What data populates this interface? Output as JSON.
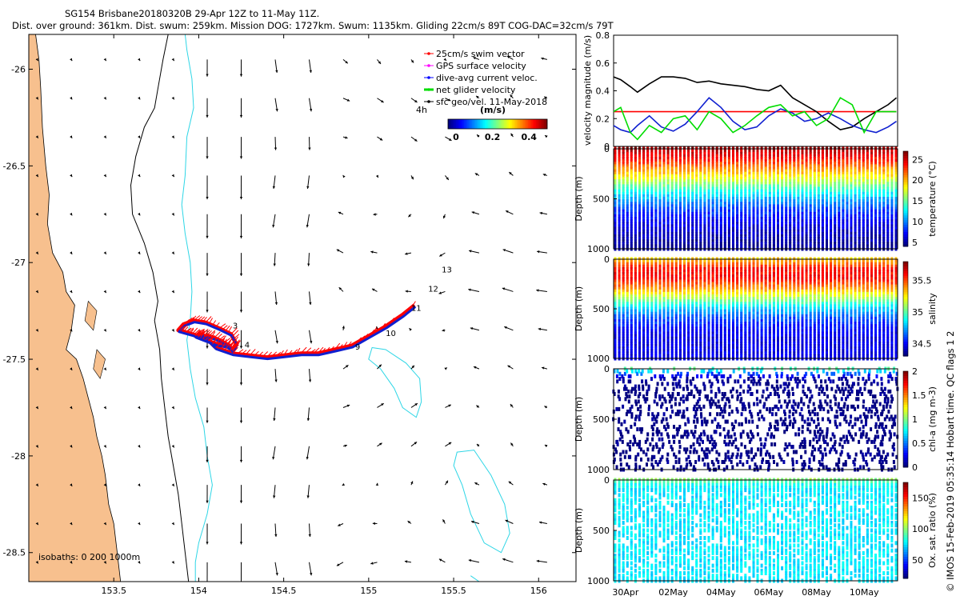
{
  "header": {
    "line1": "SG154 Brisbane20180320B 29-Apr 12Z to 11-May 11Z.",
    "line2": "Dist. over ground: 361km. Dist. swum: 259km. Mission DOG: 1727km. Swum: 1135km. Gliding 22cm/s 89T COG-DAC=32cm/s 79T"
  },
  "side_note": "© IMOS 15-Feb-2019 05:35:14 Hobart time. QC flags 1  2",
  "colors": {
    "land": "#f7c08e",
    "isobath200": "#000000",
    "isobath1000": "#2ed6e6",
    "track_red": "#ff0000",
    "track_blue": "#1020d0"
  },
  "chart_data": [
    {
      "type": "scatter",
      "name": "map",
      "xlim": [
        153.0,
        156.22
      ],
      "ylim": [
        -28.65,
        -25.82
      ],
      "x_ticks": [
        153.5,
        154,
        154.5,
        155,
        155.5,
        156
      ],
      "x_tick_labels": [
        "153.5",
        "154",
        "154.5",
        "155",
        "155.5",
        "156"
      ],
      "y_ticks": [
        -26,
        -26.5,
        -27,
        -27.5,
        -28,
        -28.5
      ],
      "y_tick_labels": [
        "-26",
        "-26.5",
        "-27",
        "-27.5",
        "-28",
        "-28.5"
      ],
      "legend": {
        "placement": "top-right",
        "entries": [
          "25cm/s swim vector",
          "GPS surface velocity",
          "dive-avg current veloc.",
          "net glider velocity",
          "sfc geo/vel. 11-May-2018"
        ],
        "entry_colors": [
          "#ff0000",
          "#ff00ff",
          "#0000ff",
          "#00dd00",
          "#000000"
        ],
        "interval_label": "4h",
        "colorbar_title": "(m/s)",
        "colorbar_ticks": [
          0,
          0.2,
          0.4
        ],
        "colorbar_tick_labels": [
          "0",
          "0.2",
          "0.4"
        ]
      },
      "isobath_label": "isobaths: 0   200   1000m",
      "isobath_levels": [
        0,
        200,
        1000
      ],
      "day_labels": [
        {
          "label": "3",
          "lon": 154.2,
          "lat": -27.34
        },
        {
          "label": "4",
          "lon": 154.27,
          "lat": -27.44
        },
        {
          "label": "9",
          "lon": 154.92,
          "lat": -27.45
        },
        {
          "label": "10",
          "lon": 155.1,
          "lat": -27.38
        },
        {
          "label": "11",
          "lon": 155.25,
          "lat": -27.25
        },
        {
          "label": "12",
          "lon": 155.35,
          "lat": -27.15
        },
        {
          "label": "13",
          "lon": 155.43,
          "lat": -27.05
        }
      ],
      "track": {
        "lon": [
          154.2,
          154.18,
          154.12,
          154.06,
          154.0,
          153.96,
          153.92,
          153.88,
          153.91,
          153.97,
          154.04,
          154.12,
          154.19,
          154.22,
          154.2,
          154.16,
          154.1,
          154.04,
          153.98,
          154.02,
          154.1,
          154.2,
          154.3,
          154.4,
          154.5,
          154.6,
          154.7,
          154.8,
          154.9,
          155.0,
          155.1,
          155.2,
          155.27
        ],
        "lat": [
          -27.46,
          -27.43,
          -27.4,
          -27.38,
          -27.38,
          -27.37,
          -27.36,
          -27.35,
          -27.32,
          -27.3,
          -27.31,
          -27.34,
          -27.37,
          -27.42,
          -27.45,
          -27.43,
          -27.42,
          -27.4,
          -27.38,
          -27.37,
          -27.44,
          -27.47,
          -27.48,
          -27.49,
          -27.48,
          -27.47,
          -27.47,
          -27.45,
          -27.43,
          -27.38,
          -27.33,
          -27.27,
          -27.22
        ]
      }
    },
    {
      "type": "line",
      "name": "velocity",
      "ylabel": "velocity magnitude (m/s)",
      "x": [
        0,
        0.3,
        0.7,
        1,
        1.5,
        2,
        2.5,
        3,
        3.5,
        4,
        4.5,
        5,
        5.5,
        6,
        6.5,
        7,
        7.5,
        8,
        8.5,
        9,
        9.5,
        10,
        10.5,
        11,
        11.5,
        11.85
      ],
      "ylim": [
        0,
        0.8
      ],
      "y_ticks": [
        0,
        0.2,
        0.4,
        0.6,
        0.8
      ],
      "y_tick_labels": [
        "0",
        "0.2",
        "0.4",
        "0.6",
        "0.8"
      ],
      "series": [
        {
          "name": "swim",
          "color": "#ff0000",
          "values": [
            0.25,
            0.25,
            0.25,
            0.25,
            0.25,
            0.25,
            0.25,
            0.25,
            0.25,
            0.25,
            0.25,
            0.25,
            0.25,
            0.25,
            0.25,
            0.25,
            0.25,
            0.25,
            0.25,
            0.25,
            0.25,
            0.25,
            0.25,
            0.25,
            0.25,
            0.25
          ]
        },
        {
          "name": "net",
          "color": "#000000",
          "values": [
            0.5,
            0.48,
            0.43,
            0.39,
            0.45,
            0.5,
            0.5,
            0.49,
            0.46,
            0.47,
            0.45,
            0.44,
            0.43,
            0.41,
            0.4,
            0.44,
            0.35,
            0.3,
            0.25,
            0.18,
            0.12,
            0.14,
            0.2,
            0.25,
            0.3,
            0.35
          ]
        },
        {
          "name": "current",
          "color": "#1020d0",
          "values": [
            0.15,
            0.12,
            0.1,
            0.15,
            0.22,
            0.14,
            0.11,
            0.16,
            0.25,
            0.35,
            0.28,
            0.18,
            0.12,
            0.14,
            0.22,
            0.27,
            0.24,
            0.18,
            0.2,
            0.24,
            0.2,
            0.15,
            0.12,
            0.1,
            0.14,
            0.18
          ]
        },
        {
          "name": "glider",
          "color": "#00dd00",
          "values": [
            0.25,
            0.28,
            0.1,
            0.05,
            0.15,
            0.1,
            0.2,
            0.22,
            0.12,
            0.25,
            0.2,
            0.1,
            0.15,
            0.22,
            0.28,
            0.3,
            0.22,
            0.25,
            0.15,
            0.2,
            0.35,
            0.3,
            0.1,
            0.25,
            0.25,
            0.25
          ]
        }
      ]
    },
    {
      "type": "scatter",
      "name": "temperature",
      "ylabel": "Depth (m)",
      "cbar_label": "temperature (°C)",
      "ylim": [
        0,
        1000
      ],
      "y_ticks": [
        0,
        500,
        1000
      ],
      "y_tick_labels": [
        "0",
        "500",
        "1000"
      ],
      "cbar_range": [
        4,
        27
      ],
      "cbar_ticks": [
        5,
        10,
        15,
        20,
        25
      ],
      "cbar_tick_labels": [
        "5",
        "10",
        "15",
        "20",
        "25"
      ],
      "profile": {
        "depth": [
          0,
          100,
          200,
          300,
          400,
          500,
          600,
          700,
          800,
          900,
          1000
        ],
        "values": [
          26,
          24,
          21,
          18,
          14,
          11,
          8.5,
          7,
          6,
          5,
          4.5
        ]
      }
    },
    {
      "type": "scatter",
      "name": "salinity",
      "ylabel": "Depth (m)",
      "cbar_label": "salinity",
      "ylim": [
        0,
        1000
      ],
      "y_ticks": [
        0,
        500,
        1000
      ],
      "y_tick_labels": [
        "0",
        "500",
        "1000"
      ],
      "cbar_range": [
        34.3,
        35.8
      ],
      "cbar_ticks": [
        34.5,
        35,
        35.5
      ],
      "cbar_tick_labels": [
        "34.5",
        "35",
        "35.5"
      ],
      "profile": {
        "depth": [
          0,
          100,
          200,
          300,
          400,
          500,
          600,
          700,
          800,
          900,
          1000
        ],
        "values": [
          35.3,
          35.6,
          35.6,
          35.4,
          35.1,
          34.8,
          34.6,
          34.5,
          34.45,
          34.45,
          34.45
        ]
      }
    },
    {
      "type": "scatter",
      "name": "chlorophyll",
      "ylabel": "Depth (m)",
      "cbar_label": "chl-a (mg m-3)",
      "ylim": [
        0,
        1000
      ],
      "y_ticks": [
        0,
        500,
        1000
      ],
      "y_tick_labels": [
        "0",
        "500",
        "1000"
      ],
      "cbar_range": [
        0,
        2
      ],
      "cbar_ticks": [
        0,
        0.5,
        1,
        1.5,
        2
      ],
      "cbar_tick_labels": [
        "0",
        "0.5",
        "1",
        "1.5",
        "2"
      ],
      "profile": {
        "depth": [
          0,
          50,
          100,
          200,
          1000
        ],
        "values": [
          0.9,
          0.4,
          0.05,
          0,
          0
        ]
      }
    },
    {
      "type": "scatter",
      "name": "oxygen",
      "ylabel": "Depth (m)",
      "cbar_label": "Ox. sat. ratio (%)",
      "ylim": [
        0,
        1000
      ],
      "y_ticks": [
        0,
        500,
        1000
      ],
      "y_tick_labels": [
        "0",
        "500",
        "1000"
      ],
      "cbar_range": [
        20,
        175
      ],
      "cbar_ticks": [
        50,
        100,
        150
      ],
      "cbar_tick_labels": [
        "50",
        "100",
        "150"
      ],
      "x_ticks": [
        0.5,
        2.5,
        4.5,
        6.5,
        8.5,
        10.5
      ],
      "x_tick_labels": [
        "30Apr",
        "02May",
        "04May",
        "06May",
        "08May",
        "10May"
      ],
      "profile": {
        "depth": [
          0,
          50,
          100,
          1000
        ],
        "values": [
          100,
          80,
          75,
          75
        ]
      }
    }
  ]
}
